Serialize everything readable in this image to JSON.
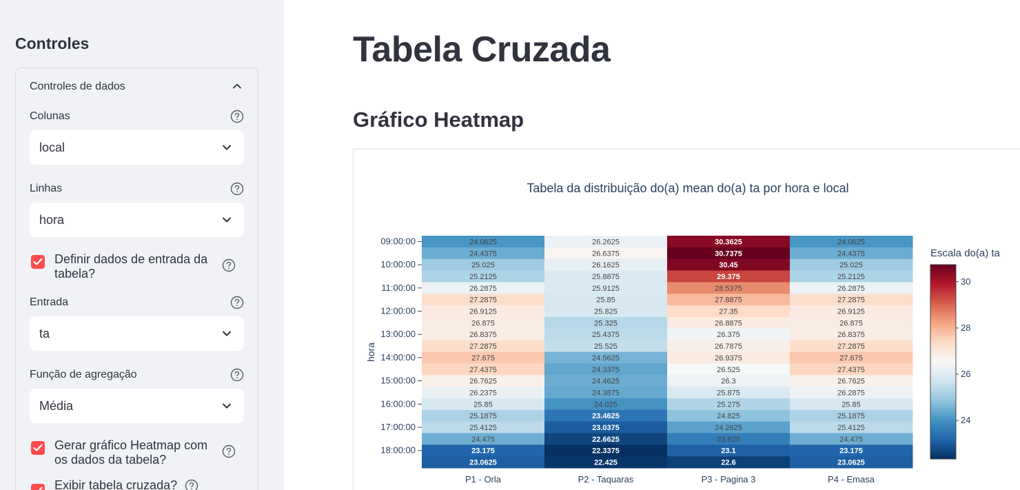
{
  "sidebar": {
    "title": "Controles",
    "expander": {
      "label": "Controles de dados"
    },
    "colunas": {
      "label": "Colunas",
      "value": "local"
    },
    "linhas": {
      "label": "Linhas",
      "value": "hora"
    },
    "definir_entrada": {
      "label": "Definir dados de entrada da tabela?",
      "checked": true
    },
    "entrada": {
      "label": "Entrada",
      "value": "ta"
    },
    "funcao_agregacao": {
      "label": "Função de agregação",
      "value": "Média"
    },
    "gerar_heatmap": {
      "label": "Gerar gráfico Heatmap com os dados da tabela?",
      "checked": true
    },
    "exibir_tabela": {
      "label": "Exibir tabela cruzada?",
      "checked": true
    }
  },
  "main": {
    "title": "Tabela Cruzada",
    "section_title": "Gráfico Heatmap"
  },
  "chart_data": {
    "type": "heatmap",
    "title": "Tabela da distribuição do(a) mean do(a) ta por hora e local",
    "xlabel": "",
    "ylabel": "hora",
    "colorbar_title": "Escala do(a) ta",
    "colorbar_ticks": [
      24,
      26,
      28,
      30
    ],
    "colorscale": "RdBu_r",
    "zmin": 22.3375,
    "zmax": 30.7375,
    "x": [
      "P1 - Orla",
      "P2 - Taquaras",
      "P3 - Pagina 3",
      "P4 - Emasa"
    ],
    "y_ticks": [
      "09:00:00",
      "10:00:00",
      "11:00:00",
      "12:00:00",
      "13:00:00",
      "14:00:00",
      "15:00:00",
      "16:00:00",
      "17:00:00",
      "18:00:00"
    ],
    "z": [
      [
        "24.0625",
        "26.2625",
        "30.3625",
        "24.0625"
      ],
      [
        "24.4375",
        "26.6375",
        "30.7375",
        "24.4375"
      ],
      [
        "25.025",
        "26.1625",
        "30.45",
        "25.025"
      ],
      [
        "25.2125",
        "25.8875",
        "29.375",
        "25.2125"
      ],
      [
        "26.2875",
        "25.9125",
        "28.5375",
        "26.2875"
      ],
      [
        "27.2875",
        "25.85",
        "27.8875",
        "27.2875"
      ],
      [
        "26.9125",
        "25.825",
        "27.35",
        "26.9125"
      ],
      [
        "26.875",
        "25.325",
        "26.8875",
        "26.875"
      ],
      [
        "26.8375",
        "25.4375",
        "26.375",
        "26.8375"
      ],
      [
        "27.2875",
        "25.525",
        "26.7875",
        "27.2875"
      ],
      [
        "27.675",
        "24.5625",
        "26.9375",
        "27.675"
      ],
      [
        "27.4375",
        "24.3375",
        "26.525",
        "27.4375"
      ],
      [
        "26.7625",
        "24.4625",
        "26.3",
        "26.7625"
      ],
      [
        "26.2375",
        "24.3875",
        "25.875",
        "26.2875"
      ],
      [
        "25.85",
        "24.025",
        "25.275",
        "25.85"
      ],
      [
        "25.1875",
        "23.4625",
        "24.825",
        "25.1875"
      ],
      [
        "25.4125",
        "23.0375",
        "24.2625",
        "25.4125"
      ],
      [
        "24.475",
        "22.6625",
        "23.625",
        "24.475"
      ],
      [
        "23.175",
        "22.3375",
        "23.1",
        "23.175"
      ],
      [
        "23.0625",
        "22.425",
        "22.6",
        "23.0625"
      ]
    ]
  }
}
